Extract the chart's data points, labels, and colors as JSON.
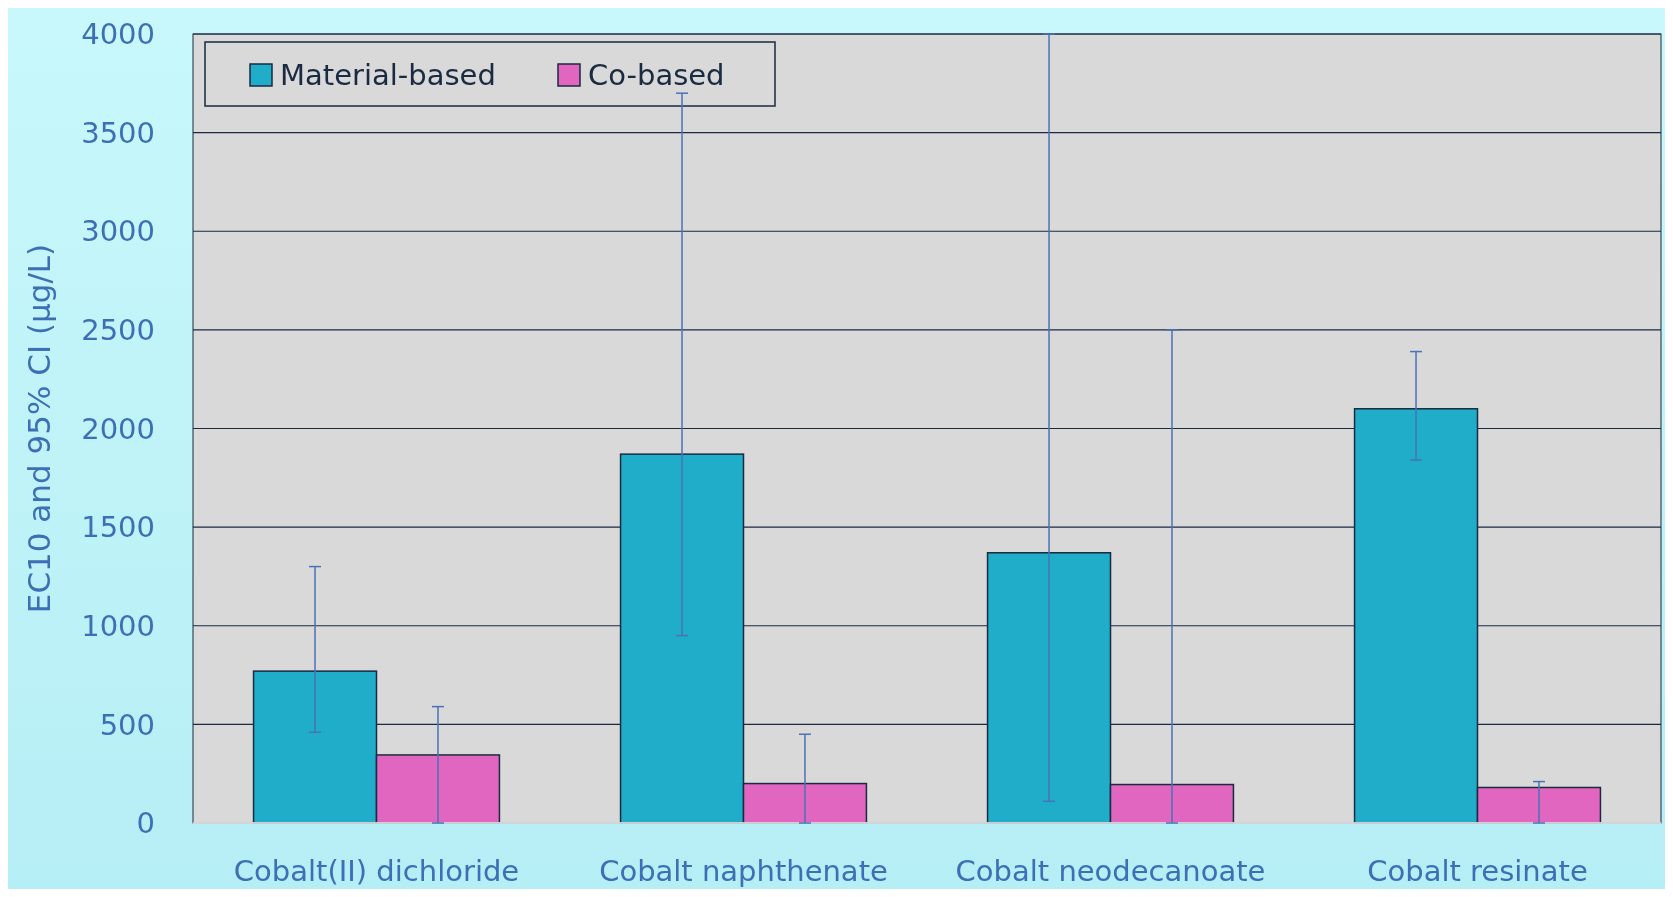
{
  "chart_data": {
    "type": "bar",
    "ylabel": "EC10 and 95% CI (µg/L)",
    "categories": [
      "Cobalt(II) dichloride",
      "Cobalt naphthenate",
      "Cobalt neodecanoate",
      "Cobalt resinate"
    ],
    "series": [
      {
        "name": "Material-based",
        "color": "#1fadca",
        "values": [
          770,
          1870,
          1370,
          2100
        ],
        "errors": [
          [
            460,
            1300
          ],
          [
            950,
            3700
          ],
          [
            110,
            4000
          ],
          [
            1840,
            2390
          ]
        ]
      },
      {
        "name": "Co-based",
        "color": "#e066c0",
        "values": [
          345,
          200,
          195,
          180
        ],
        "errors": [
          [
            0,
            590
          ],
          [
            0,
            450
          ],
          [
            0,
            2500
          ],
          [
            0,
            210
          ]
        ]
      }
    ],
    "ylim": [
      0,
      4000
    ],
    "yticks": [
      0,
      500,
      1000,
      1500,
      2000,
      2500,
      3000,
      3500,
      4000
    ],
    "grid": "y",
    "legend": "top left"
  }
}
